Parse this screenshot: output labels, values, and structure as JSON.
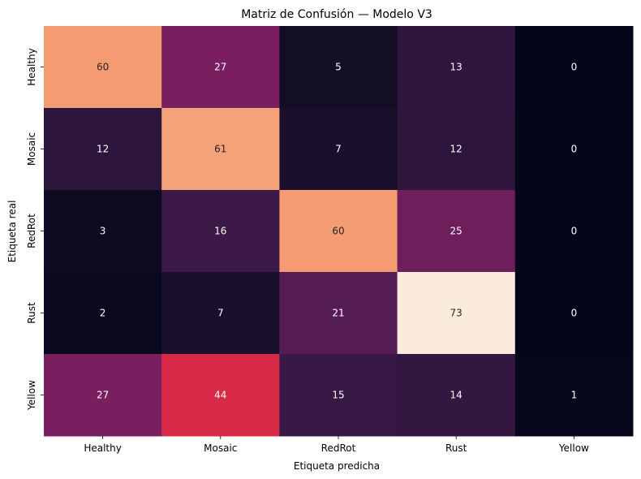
{
  "chart_data": {
    "type": "heatmap",
    "title": "Matriz de Confusión — Modelo V3",
    "xlabel": "Etiqueta predicha",
    "ylabel": "Etiqueta real",
    "x_categories": [
      "Healthy",
      "Mosaic",
      "RedRot",
      "Rust",
      "Yellow"
    ],
    "y_categories": [
      "Healthy",
      "Mosaic",
      "RedRot",
      "Rust",
      "Yellow"
    ],
    "values": [
      [
        60,
        27,
        5,
        13,
        0
      ],
      [
        12,
        61,
        7,
        12,
        0
      ],
      [
        3,
        16,
        60,
        25,
        0
      ],
      [
        2,
        7,
        21,
        73,
        0
      ],
      [
        27,
        44,
        15,
        14,
        1
      ]
    ],
    "vmin": 0,
    "vmax": 73,
    "colormap": "rocket",
    "colorbar": false,
    "grid": false
  }
}
